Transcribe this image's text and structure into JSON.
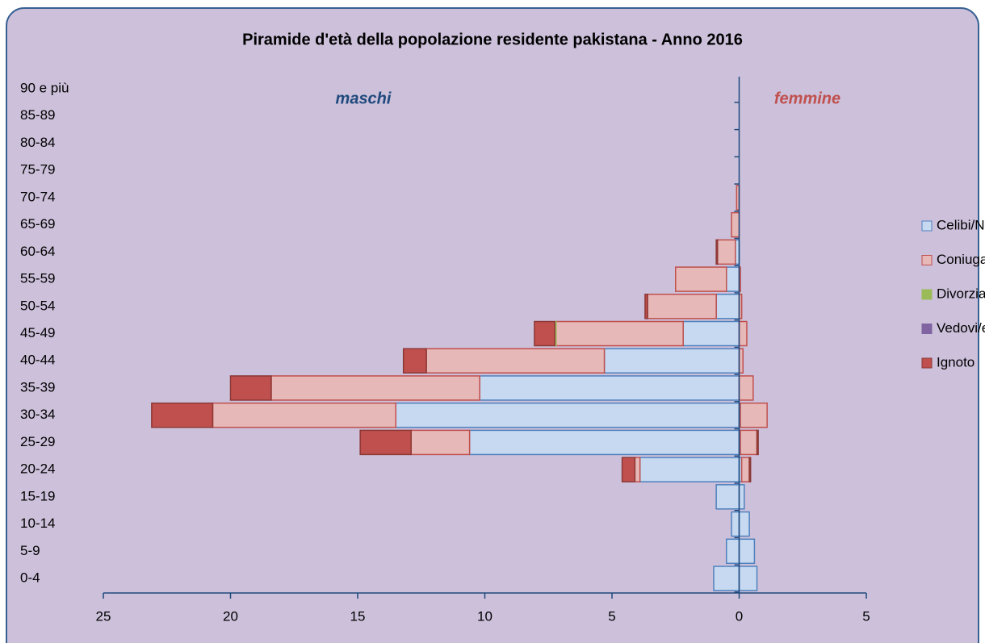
{
  "chart_data": {
    "type": "pyramid",
    "title": "Piramide d'età della popolazione residente  pakistana - Anno 2016",
    "annotations": {
      "male": "maschi",
      "female": "femmine"
    },
    "categories": [
      "0-4",
      "5-9",
      "10-14",
      "15-19",
      "20-24",
      "25-29",
      "30-34",
      "35-39",
      "40-44",
      "45-49",
      "50-54",
      "55-59",
      "60-64",
      "65-69",
      "70-74",
      "75-79",
      "80-84",
      "85-89",
      "90 e più"
    ],
    "series": [
      {
        "name": "Celibi/Nubili",
        "color": "#c6d9f1",
        "stroke": "#4f81bd",
        "male": [
          -1.0,
          -0.5,
          -0.3,
          -0.9,
          -3.9,
          -10.6,
          -13.5,
          -10.2,
          -5.3,
          -2.2,
          -0.9,
          -0.5,
          -0.15,
          0,
          0,
          0,
          0,
          0,
          0
        ],
        "female": [
          0.7,
          0.6,
          0.4,
          0.2,
          0.1,
          0.05,
          0.05,
          0,
          0,
          0,
          0,
          0,
          0,
          0,
          0,
          0,
          0,
          0,
          0
        ]
      },
      {
        "name": "Coniugati/e",
        "color": "#e6b9b8",
        "stroke": "#c0504d",
        "male": [
          0,
          0,
          0,
          0,
          -0.2,
          -2.3,
          -7.2,
          -8.2,
          -7.0,
          -5.0,
          -2.7,
          -2.0,
          -0.7,
          -0.3,
          -0.1,
          0,
          0,
          0,
          0
        ],
        "female": [
          0,
          0,
          0,
          0,
          0.3,
          0.65,
          1.05,
          0.55,
          0.15,
          0.3,
          0.1,
          0.05,
          0,
          0,
          0,
          0,
          0,
          0,
          0
        ]
      },
      {
        "name": "Divorziati/e",
        "color": "#9bbb59",
        "stroke": "#9bbb59",
        "male": [
          0,
          0,
          0,
          0,
          0,
          0,
          0,
          0,
          0,
          -0.05,
          0,
          0,
          0,
          0,
          0,
          0,
          0,
          0,
          0
        ],
        "female": [
          0,
          0,
          0,
          0,
          0,
          0,
          0,
          0,
          0,
          0,
          0,
          0,
          0,
          0,
          0,
          0,
          0,
          0,
          0
        ]
      },
      {
        "name": "Vedovi/e",
        "color": "#8064a2",
        "stroke": "#8064a2",
        "male": [
          0,
          0,
          0,
          0,
          0,
          0,
          0,
          0,
          0,
          0,
          0,
          0,
          0,
          0,
          0,
          0,
          0,
          0,
          0
        ],
        "female": [
          0,
          0,
          0,
          0,
          0,
          0,
          0,
          0,
          0,
          0,
          0,
          0,
          0,
          0,
          0,
          0,
          0,
          0,
          0
        ]
      },
      {
        "name": "Ignoto",
        "color": "#c0504d",
        "stroke": "#8c3836",
        "male": [
          0,
          0,
          0,
          0,
          -0.5,
          -2.0,
          -2.4,
          -1.6,
          -0.9,
          -0.8,
          -0.1,
          0,
          -0.05,
          0,
          0,
          0,
          0,
          0,
          0
        ],
        "female": [
          0,
          0,
          0,
          0,
          0.05,
          0.05,
          0,
          0,
          0,
          0,
          0,
          0,
          0,
          0,
          0,
          0,
          0,
          0,
          0
        ]
      }
    ],
    "xlim": [
      -25,
      5
    ],
    "xticks": [
      {
        "value": -25,
        "label": "25"
      },
      {
        "value": -20,
        "label": "20"
      },
      {
        "value": -15,
        "label": "15"
      },
      {
        "value": -10,
        "label": "10"
      },
      {
        "value": -5,
        "label": "5"
      },
      0,
      5
    ],
    "legend": "right"
  }
}
